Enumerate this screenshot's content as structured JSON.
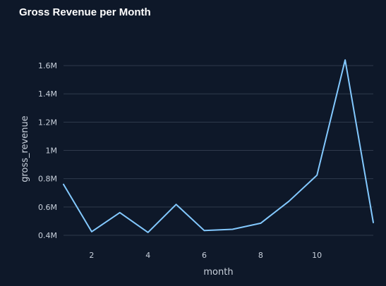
{
  "title": "Gross Revenue per Month",
  "chart_data": {
    "type": "line",
    "title": "Gross Revenue per Month",
    "xlabel": "month",
    "ylabel": "gross_revenue",
    "x": [
      1,
      2,
      3,
      4,
      5,
      6,
      7,
      8,
      9,
      10,
      11,
      12
    ],
    "series": [
      {
        "values": [
          760000,
          425000,
          560000,
          420000,
          618000,
          433000,
          442000,
          485000,
          640000,
          825000,
          1640000,
          490000
        ]
      }
    ],
    "xlim": [
      1,
      12
    ],
    "ylim": [
      0.35,
      1.73
    ],
    "x_ticks": [
      2,
      4,
      6,
      8,
      10
    ],
    "x_tick_labels": [
      "2",
      "4",
      "6",
      "8",
      "10"
    ],
    "y_ticks": [
      400000,
      600000,
      800000,
      1000000,
      1200000,
      1400000,
      1600000
    ],
    "y_tick_labels": [
      "0.4M",
      "0.6M",
      "0.8M",
      "1M",
      "1.2M",
      "1.4M",
      "1.6M"
    ],
    "grid": true,
    "colors": {
      "background": "#0e1829",
      "line": "#83c9ff",
      "grid": "#2f3a4c",
      "text": "#c9d1dc",
      "title": "#ffffff"
    }
  }
}
